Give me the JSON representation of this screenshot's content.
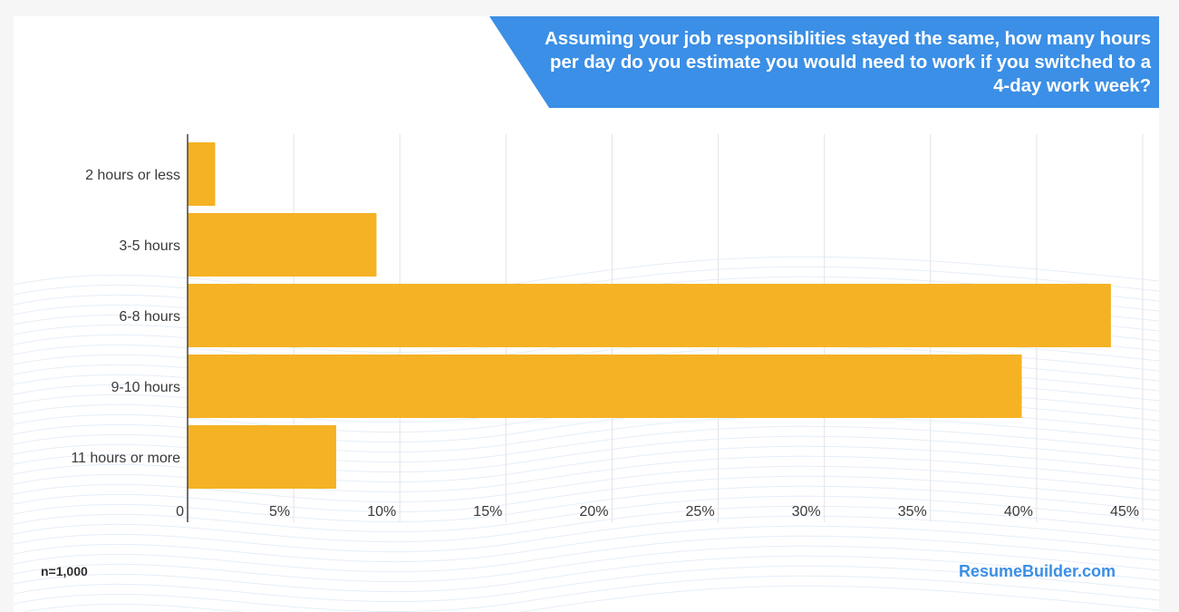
{
  "footer": {
    "sample_size": "n=1,000",
    "brand": "ResumeBuilder.com"
  },
  "colors": {
    "bar": "#f5b224",
    "banner": "#3b8fe6",
    "grid": "#e3e3e3"
  },
  "chart_data": {
    "type": "bar",
    "orientation": "horizontal",
    "title": "Assuming your job responsiblities stayed the same, how many hours per day do you estimate you would need to work if you switched to a 4-day work week?",
    "categories": [
      "2 hours or less",
      "3-5 hours",
      "6-8 hours",
      "9-10 hours",
      "11 hours or more"
    ],
    "values": [
      1.3,
      8.9,
      43.5,
      39.3,
      7.0
    ],
    "xlim": [
      0,
      45
    ],
    "x_ticks": [
      0,
      5,
      10,
      15,
      20,
      25,
      30,
      35,
      40,
      45
    ],
    "x_tick_labels": [
      "0",
      "5%",
      "10%",
      "15%",
      "20%",
      "25%",
      "30%",
      "35%",
      "40%",
      "45%"
    ],
    "grid": true,
    "legend": "none"
  }
}
